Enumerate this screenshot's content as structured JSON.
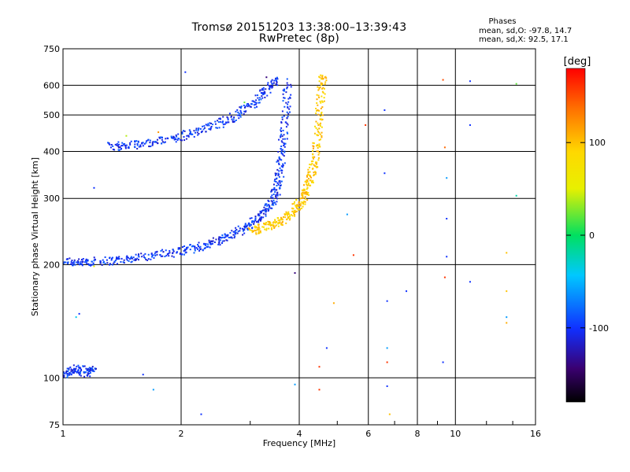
{
  "header": {
    "title_line1": "Tromsø 20151203 13:38:00–13:39:43",
    "title_line2": "RwPretec (8p)",
    "phases_label": "Phases",
    "phase_o": "mean, sd,O: -97.8, 14.7",
    "phase_x": "mean, sd,X:  92.5, 17.1"
  },
  "colors": {
    "o_mode": "#1a3cff",
    "x_mode": "#f2e600",
    "grid": "#000000"
  },
  "chart_data": {
    "type": "scatter",
    "title": "Tromsø 20151203 13:38:00–13:39:43",
    "subtitle": "RwPretec (8p)",
    "xlabel": "Frequency [MHz]",
    "ylabel": "Stationary phase Virtual Height [km]",
    "xscale": "log",
    "yscale": "log",
    "xlim": [
      1,
      16
    ],
    "ylim": [
      75,
      750
    ],
    "xticks": [
      1,
      2,
      4,
      6,
      8,
      10,
      16
    ],
    "xtick_labels": [
      "1",
      "2",
      "4",
      "6",
      "8",
      "10",
      "16"
    ],
    "yticks": [
      75,
      100,
      200,
      300,
      400,
      500,
      600,
      750
    ],
    "ytick_labels": [
      "75",
      "100",
      "200",
      "300",
      "400",
      "500",
      "600",
      "750"
    ],
    "colorbar": {
      "label": "[deg]",
      "range": [
        -180,
        180
      ],
      "ticks": [
        100,
        0,
        -100
      ],
      "tick_labels": [
        "100",
        "0",
        "-100"
      ]
    },
    "series": [
      {
        "name": "O-mode trace (lower branch)",
        "phase_deg": -100,
        "points": [
          [
            1.0,
            205
          ],
          [
            1.1,
            202
          ],
          [
            1.2,
            204
          ],
          [
            1.35,
            205
          ],
          [
            1.5,
            208
          ],
          [
            1.7,
            212
          ],
          [
            1.9,
            215
          ],
          [
            2.1,
            220
          ],
          [
            2.3,
            225
          ],
          [
            2.5,
            232
          ],
          [
            2.7,
            240
          ],
          [
            2.9,
            250
          ],
          [
            3.1,
            262
          ],
          [
            3.25,
            275
          ],
          [
            3.4,
            292
          ],
          [
            3.5,
            315
          ],
          [
            3.55,
            340
          ],
          [
            3.6,
            380
          ],
          [
            3.65,
            440
          ],
          [
            3.7,
            520
          ],
          [
            3.75,
            620
          ]
        ]
      },
      {
        "name": "O-mode trace (upper branch)",
        "phase_deg": -100,
        "points": [
          [
            1.3,
            412
          ],
          [
            1.45,
            414
          ],
          [
            1.6,
            420
          ],
          [
            1.8,
            428
          ],
          [
            2.0,
            438
          ],
          [
            2.2,
            452
          ],
          [
            2.45,
            470
          ],
          [
            2.7,
            492
          ],
          [
            2.95,
            520
          ],
          [
            3.15,
            555
          ],
          [
            3.35,
            590
          ],
          [
            3.5,
            620
          ]
        ]
      },
      {
        "name": "X-mode trace",
        "phase_deg": 95,
        "points": [
          [
            3.0,
            245
          ],
          [
            3.2,
            250
          ],
          [
            3.4,
            255
          ],
          [
            3.6,
            262
          ],
          [
            3.8,
            272
          ],
          [
            3.95,
            285
          ],
          [
            4.1,
            300
          ],
          [
            4.2,
            320
          ],
          [
            4.3,
            345
          ],
          [
            4.38,
            380
          ],
          [
            4.45,
            430
          ],
          [
            4.5,
            500
          ],
          [
            4.55,
            580
          ],
          [
            4.6,
            650
          ]
        ]
      },
      {
        "name": "E-region echoes",
        "phase_deg": -100,
        "points": [
          [
            1.0,
            102
          ],
          [
            1.05,
            104
          ],
          [
            1.1,
            106
          ],
          [
            1.15,
            103
          ],
          [
            1.2,
            107
          ]
        ]
      }
    ],
    "scatter_points": [
      {
        "f": 6.6,
        "h": 515,
        "phase": -100
      },
      {
        "f": 6.6,
        "h": 350,
        "phase": -100
      },
      {
        "f": 6.7,
        "h": 160,
        "phase": -100
      },
      {
        "f": 6.7,
        "h": 120,
        "phase": -60
      },
      {
        "f": 6.7,
        "h": 95,
        "phase": -100
      },
      {
        "f": 6.8,
        "h": 80,
        "phase": 100
      },
      {
        "f": 7.5,
        "h": 170,
        "phase": -100
      },
      {
        "f": 9.3,
        "h": 620,
        "phase": 150
      },
      {
        "f": 9.4,
        "h": 410,
        "phase": 140
      },
      {
        "f": 9.5,
        "h": 340,
        "phase": -60
      },
      {
        "f": 9.5,
        "h": 265,
        "phase": -100
      },
      {
        "f": 9.5,
        "h": 210,
        "phase": -100
      },
      {
        "f": 9.4,
        "h": 185,
        "phase": 160
      },
      {
        "f": 9.3,
        "h": 110,
        "phase": -100
      },
      {
        "f": 10.9,
        "h": 615,
        "phase": -100
      },
      {
        "f": 10.9,
        "h": 470,
        "phase": -100
      },
      {
        "f": 10.9,
        "h": 180,
        "phase": -100
      },
      {
        "f": 13.5,
        "h": 215,
        "phase": 100
      },
      {
        "f": 13.5,
        "h": 170,
        "phase": 100
      },
      {
        "f": 13.5,
        "h": 145,
        "phase": -60
      },
      {
        "f": 13.5,
        "h": 140,
        "phase": 110
      },
      {
        "f": 14.3,
        "h": 305,
        "phase": -20
      },
      {
        "f": 14.3,
        "h": 605,
        "phase": 20
      },
      {
        "f": 3.9,
        "h": 190,
        "phase": -140
      },
      {
        "f": 3.9,
        "h": 96,
        "phase": -60
      },
      {
        "f": 4.5,
        "h": 107,
        "phase": 160
      },
      {
        "f": 4.5,
        "h": 93,
        "phase": 160
      },
      {
        "f": 4.7,
        "h": 120,
        "phase": -100
      },
      {
        "f": 4.9,
        "h": 158,
        "phase": 110
      },
      {
        "f": 5.3,
        "h": 272,
        "phase": -60
      },
      {
        "f": 5.5,
        "h": 212,
        "phase": 160
      },
      {
        "f": 5.9,
        "h": 470,
        "phase": 160
      },
      {
        "f": 2.05,
        "h": 650,
        "phase": -100
      },
      {
        "f": 2.25,
        "h": 80,
        "phase": -100
      },
      {
        "f": 1.7,
        "h": 93,
        "phase": -60
      },
      {
        "f": 1.6,
        "h": 102,
        "phase": -100
      },
      {
        "f": 1.2,
        "h": 320,
        "phase": -100
      },
      {
        "f": 1.1,
        "h": 148,
        "phase": -100
      },
      {
        "f": 1.08,
        "h": 145,
        "phase": -40
      },
      {
        "f": 1.2,
        "h": 198,
        "phase": 60
      },
      {
        "f": 1.45,
        "h": 440,
        "phase": 40
      },
      {
        "f": 1.75,
        "h": 450,
        "phase": 120
      },
      {
        "f": 2.9,
        "h": 540,
        "phase": 20
      },
      {
        "f": 3.3,
        "h": 630,
        "phase": -140
      },
      {
        "f": 6.7,
        "h": 110,
        "phase": 160
      }
    ]
  }
}
